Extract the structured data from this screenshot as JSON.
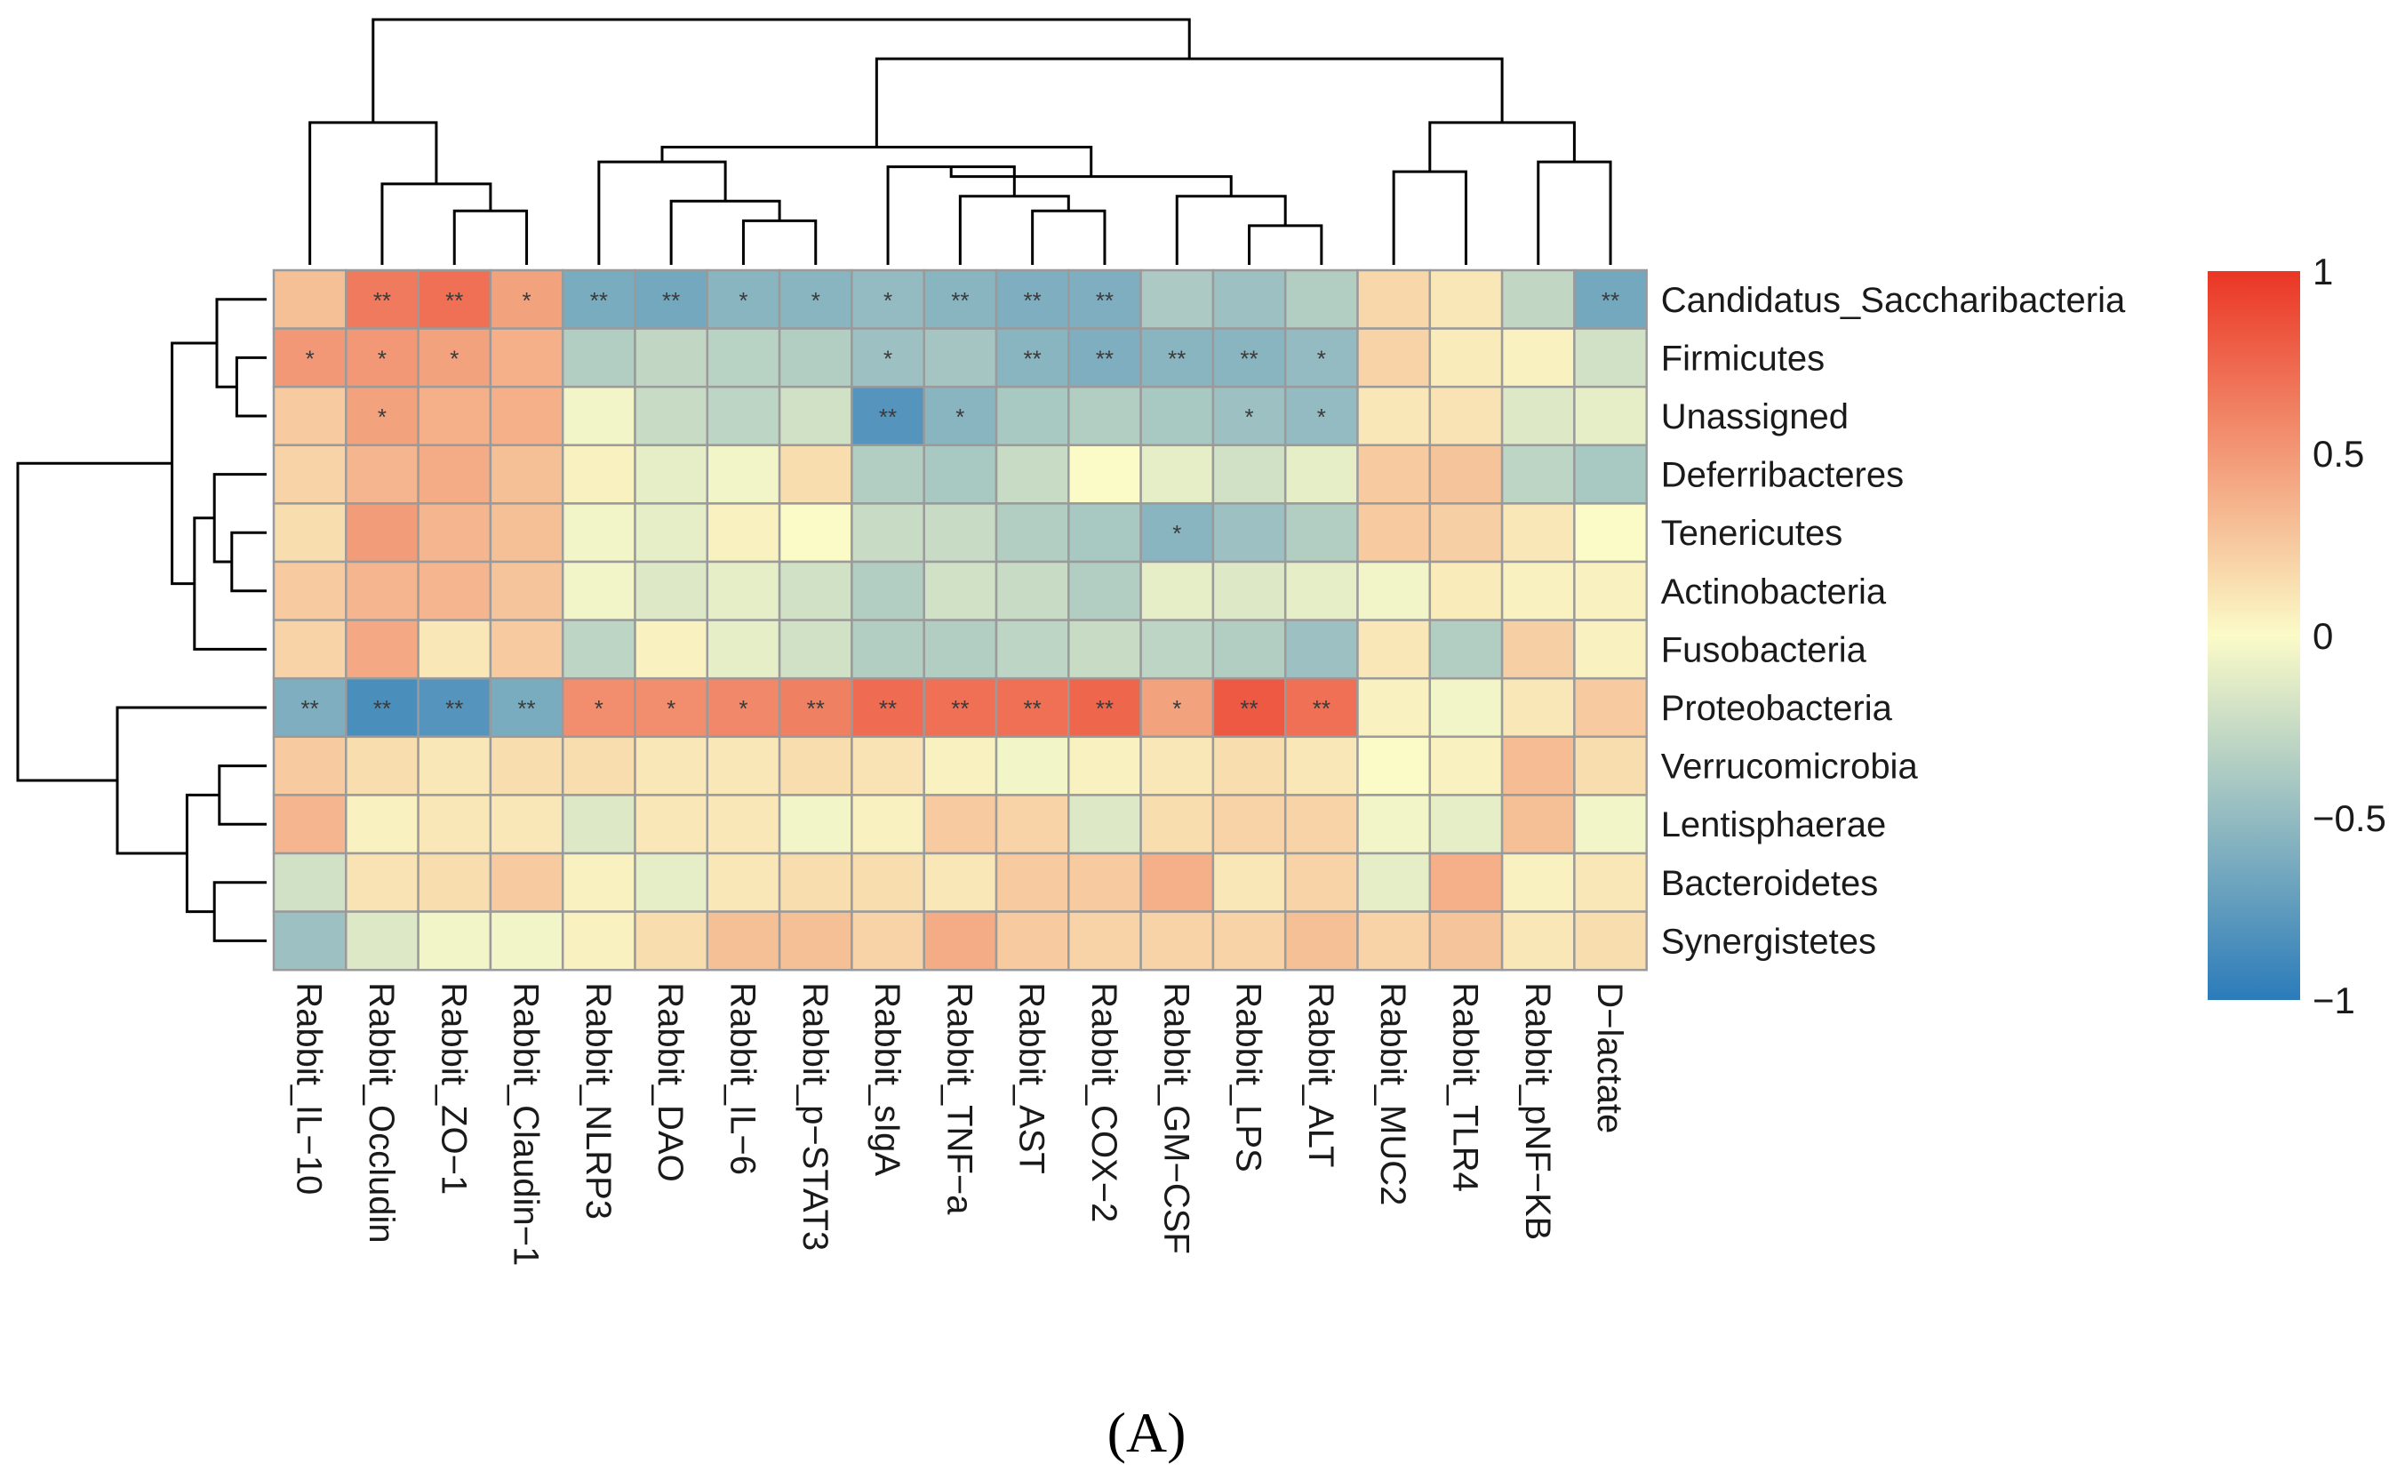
{
  "chart_data": {
    "type": "heatmap",
    "title": "",
    "panel_label": "(A)",
    "rows": [
      "Candidatus_Saccharibacteria",
      "Firmicutes",
      "Unassigned",
      "Deferribacteres",
      "Tenericutes",
      "Actinobacteria",
      "Fusobacteria",
      "Proteobacteria",
      "Verrucomicrobia",
      "Lentisphaerae",
      "Bacteroidetes",
      "Synergistetes"
    ],
    "columns": [
      "Rabbit_IL−10",
      "Rabbit_Occludin",
      "Rabbit_ZO−1",
      "Rabbit_Claudin−1",
      "Rabbit_NLRP3",
      "Rabbit_DAO",
      "Rabbit_IL−6",
      "Rabbit_p−STAT3",
      "Rabbit_sIgA",
      "Rabbit_TNF−a",
      "Rabbit_AST",
      "Rabbit_COX−2",
      "Rabbit_GM−CSF",
      "Rabbit_LPS",
      "Rabbit_ALT",
      "Rabbit_MUC2",
      "Rabbit_TLR4",
      "Rabbit_pNF−KB",
      "D−lactate"
    ],
    "values": [
      [
        0.3,
        0.65,
        0.7,
        0.45,
        -0.62,
        -0.65,
        -0.55,
        -0.55,
        -0.5,
        -0.55,
        -0.6,
        -0.6,
        -0.38,
        -0.45,
        -0.35,
        0.18,
        0.1,
        -0.28,
        -0.65
      ],
      [
        0.5,
        0.5,
        0.45,
        0.38,
        -0.35,
        -0.28,
        -0.32,
        -0.35,
        -0.45,
        -0.42,
        -0.55,
        -0.6,
        -0.55,
        -0.55,
        -0.5,
        0.2,
        0.08,
        0.05,
        -0.2
      ],
      [
        0.25,
        0.45,
        0.38,
        0.38,
        -0.05,
        -0.25,
        -0.3,
        -0.2,
        -0.8,
        -0.55,
        -0.4,
        -0.35,
        -0.4,
        -0.45,
        -0.5,
        0.1,
        0.12,
        -0.15,
        -0.1
      ],
      [
        0.2,
        0.35,
        0.4,
        0.3,
        0.05,
        -0.1,
        -0.05,
        0.15,
        -0.35,
        -0.4,
        -0.25,
        0.0,
        -0.1,
        -0.2,
        -0.1,
        0.25,
        0.28,
        -0.3,
        -0.4
      ],
      [
        0.15,
        0.48,
        0.35,
        0.3,
        -0.05,
        -0.1,
        0.05,
        0.0,
        -0.25,
        -0.25,
        -0.35,
        -0.4,
        -0.55,
        -0.45,
        -0.35,
        0.25,
        0.22,
        0.1,
        0.0
      ],
      [
        0.25,
        0.35,
        0.35,
        0.28,
        -0.05,
        -0.15,
        -0.1,
        -0.2,
        -0.35,
        -0.2,
        -0.25,
        -0.35,
        -0.1,
        -0.15,
        -0.1,
        -0.05,
        0.08,
        0.05,
        0.05
      ],
      [
        0.2,
        0.42,
        0.1,
        0.25,
        -0.3,
        0.05,
        -0.1,
        -0.2,
        -0.35,
        -0.35,
        -0.3,
        -0.25,
        -0.3,
        -0.35,
        -0.45,
        0.1,
        -0.35,
        0.22,
        0.05
      ],
      [
        -0.6,
        -0.85,
        -0.8,
        -0.62,
        0.55,
        0.55,
        0.58,
        0.62,
        0.72,
        0.7,
        0.7,
        0.75,
        0.45,
        0.82,
        0.7,
        0.05,
        -0.05,
        0.1,
        0.25
      ],
      [
        0.25,
        0.15,
        0.1,
        0.15,
        0.15,
        0.1,
        0.1,
        0.15,
        0.12,
        0.05,
        -0.05,
        0.05,
        0.1,
        0.15,
        0.1,
        0.0,
        0.05,
        0.32,
        0.15
      ],
      [
        0.35,
        0.05,
        0.1,
        0.1,
        -0.15,
        0.1,
        0.1,
        -0.05,
        0.05,
        0.25,
        0.2,
        -0.15,
        0.15,
        0.2,
        0.2,
        -0.05,
        -0.1,
        0.3,
        -0.05
      ],
      [
        -0.2,
        0.12,
        0.15,
        0.25,
        0.05,
        -0.1,
        0.1,
        0.15,
        0.15,
        0.1,
        0.25,
        0.25,
        0.38,
        0.1,
        0.2,
        -0.1,
        0.38,
        0.05,
        0.1
      ],
      [
        -0.45,
        -0.15,
        -0.05,
        -0.05,
        0.05,
        0.15,
        0.3,
        0.3,
        0.2,
        0.4,
        0.25,
        0.2,
        0.2,
        0.2,
        0.3,
        0.2,
        0.28,
        0.1,
        0.15
      ]
    ],
    "significance": [
      [
        "",
        "**",
        "**",
        "*",
        "**",
        "**",
        "*",
        "*",
        "*",
        "**",
        "**",
        "**",
        "",
        "",
        "",
        "",
        "",
        "",
        "**"
      ],
      [
        "*",
        "*",
        "*",
        "",
        "",
        "",
        "",
        "",
        "*",
        "",
        "**",
        "**",
        "**",
        "**",
        "*",
        "",
        "",
        "",
        ""
      ],
      [
        "",
        "*",
        "",
        "",
        "",
        "",
        "",
        "",
        "**",
        "*",
        "",
        "",
        "",
        "*",
        "*",
        "",
        "",
        "",
        ""
      ],
      [
        "",
        "",
        "",
        "",
        "",
        "",
        "",
        "",
        "",
        "",
        "",
        "",
        "",
        "",
        "",
        "",
        "",
        "",
        ""
      ],
      [
        "",
        "",
        "",
        "",
        "",
        "",
        "",
        "",
        "",
        "",
        "",
        "",
        "*",
        "",
        "",
        "",
        "",
        "",
        ""
      ],
      [
        "",
        "",
        "",
        "",
        "",
        "",
        "",
        "",
        "",
        "",
        "",
        "",
        "",
        "",
        "",
        "",
        "",
        "",
        ""
      ],
      [
        "",
        "",
        "",
        "",
        "",
        "",
        "",
        "",
        "",
        "",
        "",
        "",
        "",
        "",
        "",
        "",
        "",
        "",
        ""
      ],
      [
        "**",
        "**",
        "**",
        "**",
        "*",
        "*",
        "*",
        "**",
        "**",
        "**",
        "**",
        "**",
        "*",
        "**",
        "**",
        "",
        "",
        "",
        ""
      ],
      [
        "",
        "",
        "",
        "",
        "",
        "",
        "",
        "",
        "",
        "",
        "",
        "",
        "",
        "",
        "",
        "",
        "",
        "",
        ""
      ],
      [
        "",
        "",
        "",
        "",
        "",
        "",
        "",
        "",
        "",
        "",
        "",
        "",
        "",
        "",
        "",
        "",
        "",
        "",
        ""
      ],
      [
        "",
        "",
        "",
        "",
        "",
        "",
        "",
        "",
        "",
        "",
        "",
        "",
        "",
        "",
        "",
        "",
        "",
        "",
        ""
      ],
      [
        "",
        "",
        "",
        "",
        "",
        "",
        "",
        "",
        "",
        "",
        "",
        "",
        "",
        "",
        "",
        "",
        "",
        "",
        ""
      ]
    ],
    "color_scale": {
      "range": [
        -1,
        1
      ],
      "ticks": [
        {
          "value": 1,
          "label": "1"
        },
        {
          "value": 0.5,
          "label": "0.5"
        },
        {
          "value": 0,
          "label": "0"
        },
        {
          "value": -0.5,
          "label": "−0.5"
        },
        {
          "value": -1,
          "label": "−1"
        }
      ],
      "low_color": "#2b7bba",
      "mid_color": "#fbfbc8",
      "high_color": "#ea3524"
    },
    "column_dendrogram": {
      "leaf_order": [
        0,
        1,
        2,
        3,
        4,
        5,
        6,
        7,
        8,
        9,
        10,
        11,
        12,
        13,
        14,
        15,
        16,
        17,
        18
      ],
      "merges": [
        [
          2,
          3,
          0.22
        ],
        [
          1,
          19,
          0.33
        ],
        [
          0,
          20,
          0.58
        ],
        [
          6,
          7,
          0.18
        ],
        [
          5,
          22,
          0.26
        ],
        [
          4,
          23,
          0.42
        ],
        [
          10,
          11,
          0.22
        ],
        [
          9,
          25,
          0.28
        ],
        [
          8,
          26,
          0.4
        ],
        [
          13,
          14,
          0.16
        ],
        [
          12,
          28,
          0.28
        ],
        [
          27,
          29,
          0.36
        ],
        [
          24,
          30,
          0.48
        ],
        [
          15,
          16,
          0.38
        ],
        [
          17,
          18,
          0.42
        ],
        [
          32,
          33,
          0.58
        ],
        [
          31,
          34,
          0.84
        ],
        [
          21,
          35,
          1.0
        ]
      ]
    },
    "row_dendrogram": {
      "leaf_order": [
        0,
        1,
        2,
        3,
        4,
        5,
        6,
        7,
        8,
        9,
        10,
        11
      ],
      "merges": [
        [
          1,
          2,
          0.12
        ],
        [
          0,
          12,
          0.2
        ],
        [
          4,
          5,
          0.14
        ],
        [
          3,
          14,
          0.21
        ],
        [
          15,
          6,
          0.29
        ],
        [
          13,
          16,
          0.38
        ],
        [
          8,
          9,
          0.19
        ],
        [
          10,
          11,
          0.21
        ],
        [
          18,
          19,
          0.32
        ],
        [
          7,
          20,
          0.6
        ],
        [
          17,
          21,
          1.0
        ]
      ]
    }
  }
}
